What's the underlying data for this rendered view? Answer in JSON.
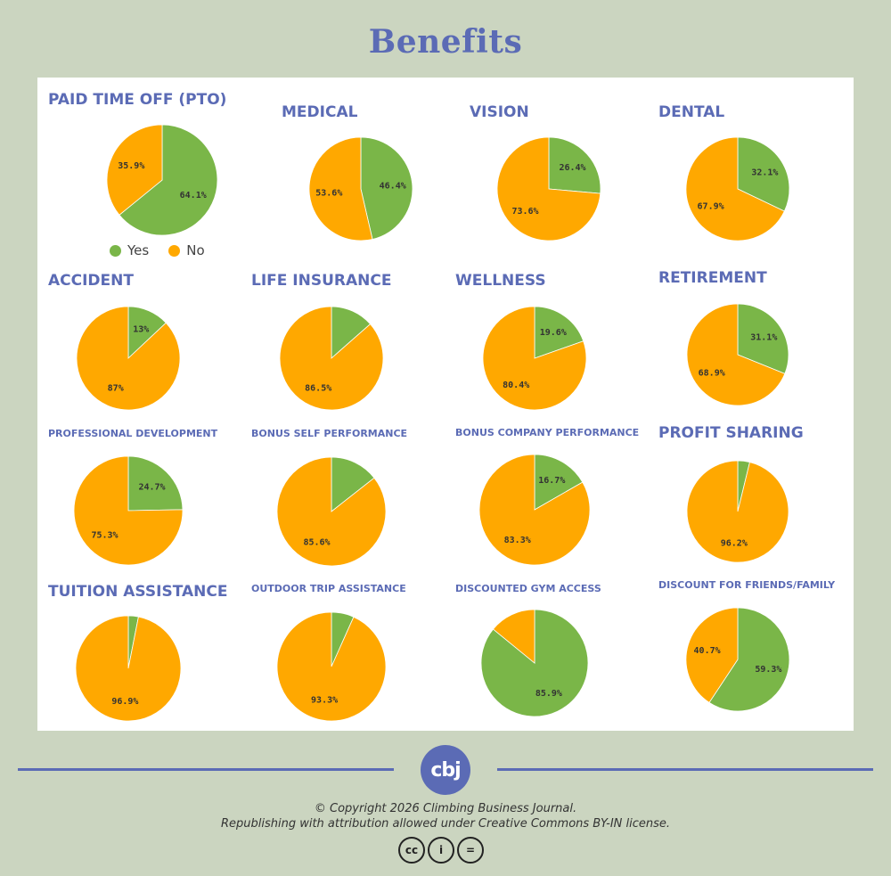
{
  "page": {
    "title": "Benefits"
  },
  "colors": {
    "yes": "#7ab648",
    "no": "#ffa800",
    "title": "#5b6bb5",
    "background": "#cbd5c0"
  },
  "legend": {
    "yes_label": "Yes",
    "no_label": "No"
  },
  "chart_data": [
    {
      "type": "pie",
      "title": "PAID TIME OFF (PTO)",
      "slices": [
        {
          "label": "Yes",
          "value": 64.1
        },
        {
          "label": "No",
          "value": 35.9
        }
      ],
      "labels": [
        "64.1%",
        "35.9%"
      ]
    },
    {
      "type": "pie",
      "title": "MEDICAL",
      "slices": [
        {
          "label": "Yes",
          "value": 46.4
        },
        {
          "label": "No",
          "value": 53.6
        }
      ],
      "labels": [
        "46.4%",
        "53.6%"
      ]
    },
    {
      "type": "pie",
      "title": "VISION",
      "slices": [
        {
          "label": "Yes",
          "value": 26.4
        },
        {
          "label": "No",
          "value": 73.6
        }
      ],
      "labels": [
        "26.4%",
        "73.6%"
      ]
    },
    {
      "type": "pie",
      "title": "DENTAL",
      "slices": [
        {
          "label": "Yes",
          "value": 32.1
        },
        {
          "label": "No",
          "value": 67.9
        }
      ],
      "labels": [
        "32.1%",
        "67.9%"
      ]
    },
    {
      "type": "pie",
      "title": "ACCIDENT",
      "slices": [
        {
          "label": "Yes",
          "value": 13
        },
        {
          "label": "No",
          "value": 87
        }
      ],
      "labels": [
        "13%",
        "87%"
      ]
    },
    {
      "type": "pie",
      "title": "LIFE INSURANCE",
      "slices": [
        {
          "label": "Yes",
          "value": 13.5
        },
        {
          "label": "No",
          "value": 86.5
        }
      ],
      "labels": [
        "",
        "86.5%"
      ]
    },
    {
      "type": "pie",
      "title": "WELLNESS",
      "slices": [
        {
          "label": "Yes",
          "value": 19.6
        },
        {
          "label": "No",
          "value": 80.4
        }
      ],
      "labels": [
        "19.6%",
        "80.4%"
      ]
    },
    {
      "type": "pie",
      "title": "RETIREMENT",
      "slices": [
        {
          "label": "Yes",
          "value": 31.1
        },
        {
          "label": "No",
          "value": 68.9
        }
      ],
      "labels": [
        "31.1%",
        "68.9%"
      ]
    },
    {
      "type": "pie",
      "title": "PROFESSIONAL DEVELOPMENT",
      "slices": [
        {
          "label": "Yes",
          "value": 24.7
        },
        {
          "label": "No",
          "value": 75.3
        }
      ],
      "labels": [
        "24.7%",
        "75.3%"
      ]
    },
    {
      "type": "pie",
      "title": "BONUS SELF PERFORMANCE",
      "slices": [
        {
          "label": "Yes",
          "value": 14.4
        },
        {
          "label": "No",
          "value": 85.6
        }
      ],
      "labels": [
        "",
        "85.6%"
      ]
    },
    {
      "type": "pie",
      "title": "BONUS COMPANY PERFORMANCE",
      "slices": [
        {
          "label": "Yes",
          "value": 16.7
        },
        {
          "label": "No",
          "value": 83.3
        }
      ],
      "labels": [
        "16.7%",
        "83.3%"
      ]
    },
    {
      "type": "pie",
      "title": "PROFIT SHARING",
      "slices": [
        {
          "label": "Yes",
          "value": 3.8
        },
        {
          "label": "No",
          "value": 96.2
        }
      ],
      "labels": [
        "",
        "96.2%"
      ]
    },
    {
      "type": "pie",
      "title": "TUITION ASSISTANCE",
      "slices": [
        {
          "label": "Yes",
          "value": 3.1
        },
        {
          "label": "No",
          "value": 96.9
        }
      ],
      "labels": [
        "",
        "96.9%"
      ]
    },
    {
      "type": "pie",
      "title": "OUTDOOR TRIP ASSISTANCE",
      "slices": [
        {
          "label": "Yes",
          "value": 6.7
        },
        {
          "label": "No",
          "value": 93.3
        }
      ],
      "labels": [
        "",
        "93.3%"
      ]
    },
    {
      "type": "pie",
      "title": "DISCOUNTED GYM ACCESS",
      "slices": [
        {
          "label": "Yes",
          "value": 85.9
        },
        {
          "label": "No",
          "value": 14.1
        }
      ],
      "labels": [
        "85.9%",
        ""
      ]
    },
    {
      "type": "pie",
      "title": "DISCOUNT FOR FRIENDS/FAMILY",
      "slices": [
        {
          "label": "Yes",
          "value": 59.3
        },
        {
          "label": "No",
          "value": 40.7
        }
      ],
      "labels": [
        "59.3%",
        "40.7%"
      ]
    }
  ],
  "footer": {
    "logo_text": "cbj",
    "copyright_line1": "© Copyright 2026 Climbing Business Journal.",
    "copyright_line2": "Republishing with attribution allowed under Creative Commons BY-IN license.",
    "license_icons": [
      "cc-icon",
      "by-person-icon",
      "nd-equals-icon"
    ],
    "license_glyphs": [
      "cc",
      "i",
      "="
    ]
  }
}
